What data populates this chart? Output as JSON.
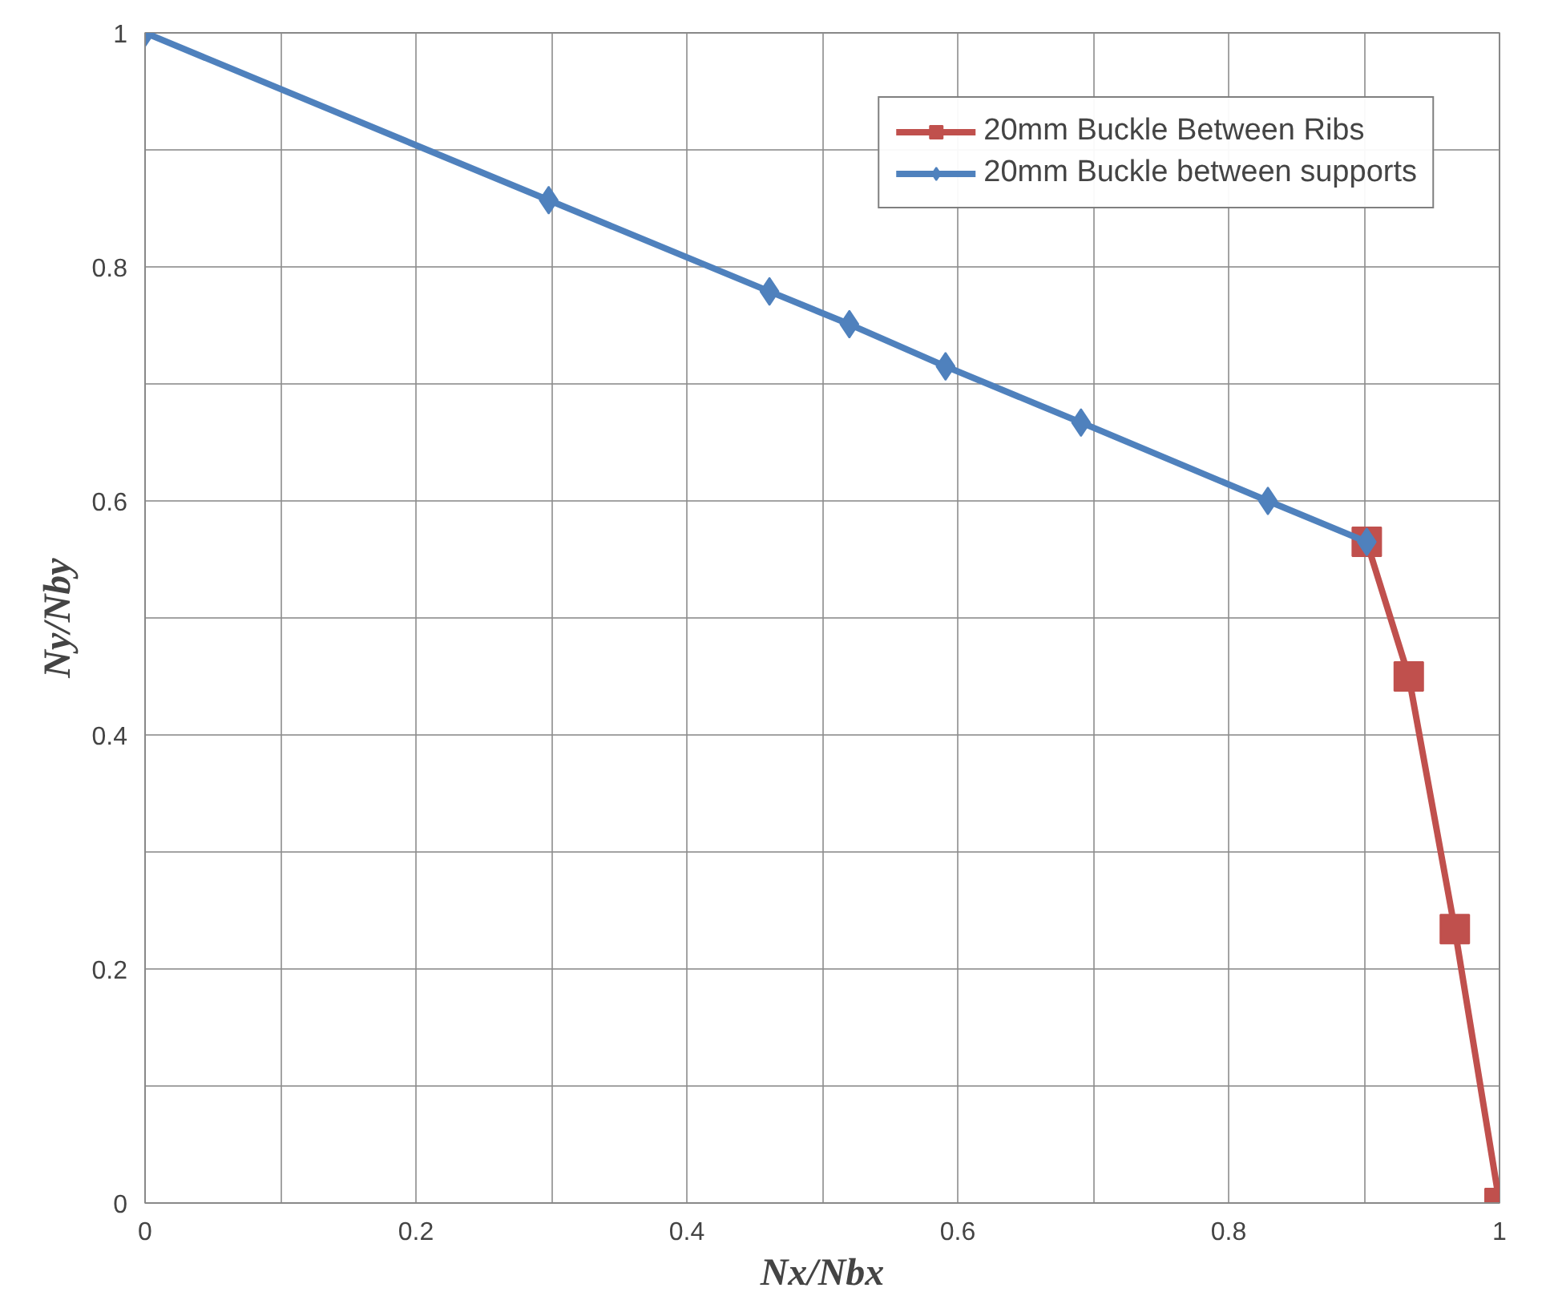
{
  "chart_data": {
    "type": "line",
    "xlabel": "Nx/Nbx",
    "ylabel": "Ny/Nby",
    "xlim": [
      0,
      1
    ],
    "ylim": [
      0,
      1
    ],
    "xticks": [
      0,
      {
        "value": 0.1,
        "label": null
      },
      0.2,
      {
        "value": 0.3,
        "label": null
      },
      0.4,
      {
        "value": 0.5,
        "label": null
      },
      0.6,
      {
        "value": 0.7,
        "label": null
      },
      0.8,
      {
        "value": 0.9,
        "label": null
      },
      1
    ],
    "yticks": [
      0,
      {
        "value": 0.1,
        "label": null
      },
      0.2,
      {
        "value": 0.3,
        "label": null
      },
      0.4,
      {
        "value": 0.5,
        "label": null
      },
      0.6,
      {
        "value": 0.7,
        "label": null
      },
      0.8,
      {
        "value": 0.9,
        "label": null
      },
      1
    ],
    "grid": true,
    "legend": "top right",
    "series": [
      {
        "name": "20mm Buckle Between Ribs",
        "color": "#c0504d",
        "marker": "square",
        "x": [
          0.902,
          0.933,
          0.967,
          1.0
        ],
        "values": [
          0.565,
          0.45,
          0.234,
          0.0
        ]
      },
      {
        "name": "20mm Buckle between supports",
        "color": "#4f81bd",
        "marker": "diamond",
        "x": [
          0.0,
          0.298,
          0.461,
          0.52,
          0.591,
          0.691,
          0.829,
          0.902
        ],
        "values": [
          1.0,
          0.857,
          0.779,
          0.751,
          0.715,
          0.667,
          0.6,
          0.565
        ]
      }
    ]
  }
}
